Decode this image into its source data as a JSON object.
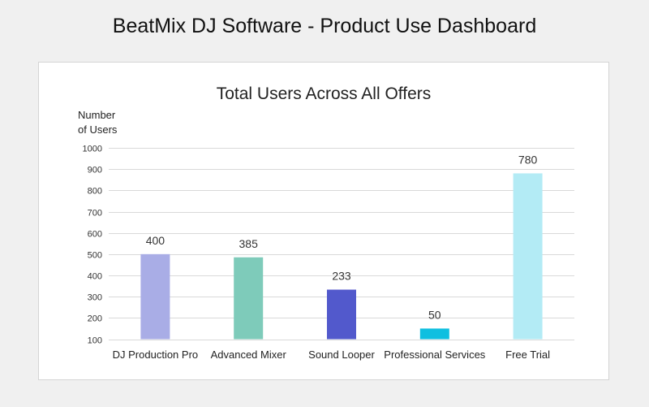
{
  "page": {
    "title": "BeatMix DJ Software - Product Use Dashboard"
  },
  "chart_data": {
    "type": "bar",
    "title": "Total Users Across All Offers",
    "ylabel_line1": "Number",
    "ylabel_line2": "of Users",
    "xlabel": "",
    "categories": [
      "DJ Production Pro",
      "Advanced Mixer",
      "Sound Looper",
      "Professional Services",
      "Free Trial"
    ],
    "values": [
      400,
      385,
      233,
      50,
      780
    ],
    "bar_heights": [
      500,
      485,
      333,
      150,
      880
    ],
    "colors": [
      "#a9ade6",
      "#7ecbba",
      "#5259cc",
      "#0fbfe0",
      "#b3ebf5"
    ],
    "ylim": [
      100,
      1000
    ],
    "yticks": [
      100,
      200,
      300,
      400,
      500,
      600,
      700,
      800,
      900,
      1000
    ],
    "grid": true
  }
}
